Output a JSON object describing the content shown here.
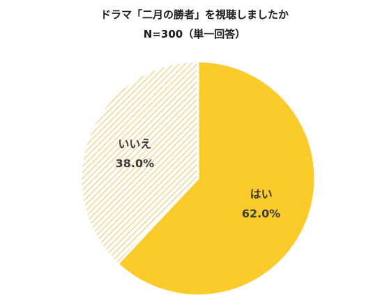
{
  "chart_data": {
    "type": "pie",
    "title": "ドラマ「二月の勝者」を視聴しましたか",
    "subtitle": "N=300（単一回答）",
    "slices": [
      {
        "label": "はい",
        "value": 62.0,
        "value_label": "62.0%",
        "color": "#fbcb2c",
        "pattern": "solid"
      },
      {
        "label": "いいえ",
        "value": 38.0,
        "value_label": "38.0%",
        "color": "#f2d99a",
        "pattern": "hatched"
      }
    ],
    "start_angle_deg": 0,
    "direction": "clockwise",
    "legend": "none"
  }
}
